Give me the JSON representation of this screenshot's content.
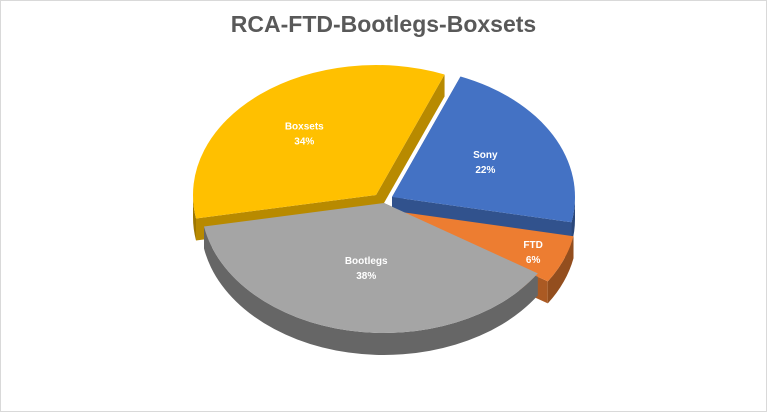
{
  "chart_data": {
    "type": "pie",
    "title": "RCA-FTD-Bootlegs-Boxsets",
    "slices": [
      {
        "name": "Sony",
        "value": 22,
        "label": "22%",
        "color": "#4472C4"
      },
      {
        "name": "FTD",
        "value": 6,
        "label": "6%",
        "color": "#ED7D31"
      },
      {
        "name": "Bootlegs",
        "value": 38,
        "label": "38%",
        "color": "#A5A5A5"
      },
      {
        "name": "Boxsets",
        "value": 34,
        "label": "34%",
        "color": "#FFC000"
      }
    ],
    "legend": "none",
    "style": "3d-exploded"
  }
}
